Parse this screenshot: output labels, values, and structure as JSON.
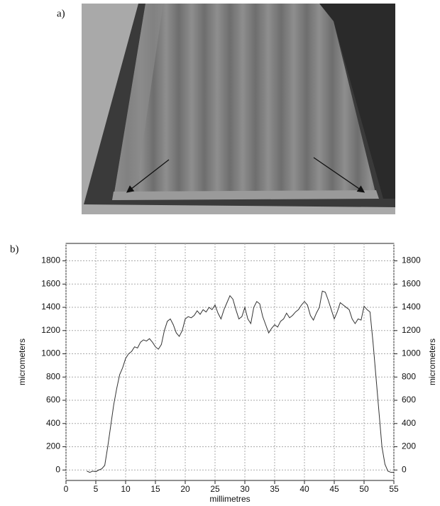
{
  "figure": {
    "panel_labels": [
      "a)",
      "b)"
    ]
  },
  "chart_data": {
    "type": "line",
    "x_label": "millimetres",
    "y_label": "micrometers",
    "y2_label": "micrometers",
    "x": [
      3.5,
      4,
      4.5,
      5,
      5.5,
      6,
      6.5,
      7,
      7.5,
      8,
      8.5,
      9,
      9.5,
      10,
      10.5,
      11,
      11.5,
      12,
      12.5,
      13,
      13.5,
      14,
      14.5,
      15,
      15.5,
      16,
      16.5,
      17,
      17.5,
      18,
      18.5,
      19,
      19.5,
      20,
      20.5,
      21,
      21.5,
      22,
      22.5,
      23,
      23.5,
      24,
      24.5,
      25,
      25.5,
      26,
      26.5,
      27,
      27.5,
      28,
      28.5,
      29,
      29.5,
      30,
      30.5,
      31,
      31.5,
      32,
      32.5,
      33,
      33.5,
      34,
      34.5,
      35,
      35.5,
      36,
      36.5,
      37,
      37.5,
      38,
      38.5,
      39,
      39.5,
      40,
      40.5,
      41,
      41.5,
      42,
      42.5,
      43,
      43.5,
      44,
      44.5,
      45,
      45.5,
      46,
      46.5,
      47,
      47.5,
      48,
      48.5,
      49,
      49.5,
      50,
      50.5,
      51,
      51.5,
      52,
      52.5,
      53,
      53.5,
      54,
      54.5,
      55
    ],
    "series": [
      {
        "color": "#333333",
        "values": [
          -10,
          -20,
          -10,
          -15,
          0,
          10,
          40,
          200,
          380,
          560,
          700,
          820,
          880,
          960,
          1000,
          1020,
          1060,
          1050,
          1100,
          1120,
          1110,
          1130,
          1100,
          1060,
          1040,
          1080,
          1200,
          1280,
          1300,
          1250,
          1180,
          1150,
          1200,
          1300,
          1320,
          1310,
          1330,
          1370,
          1340,
          1380,
          1360,
          1400,
          1380,
          1420,
          1350,
          1300,
          1380,
          1440,
          1500,
          1470,
          1380,
          1300,
          1320,
          1400,
          1300,
          1260,
          1400,
          1450,
          1430,
          1320,
          1250,
          1180,
          1220,
          1250,
          1230,
          1280,
          1300,
          1350,
          1310,
          1330,
          1360,
          1380,
          1420,
          1450,
          1420,
          1330,
          1290,
          1350,
          1400,
          1540,
          1530,
          1460,
          1380,
          1300,
          1360,
          1440,
          1420,
          1400,
          1380,
          1300,
          1260,
          1300,
          1290,
          1410,
          1380,
          1360,
          1100,
          800,
          500,
          200,
          50,
          -10,
          -20,
          -20
        ]
      }
    ],
    "xlim": [
      0,
      55
    ],
    "xticks": [
      0,
      5,
      10,
      15,
      20,
      25,
      30,
      35,
      40,
      45,
      50,
      55
    ],
    "ylim": [
      -90,
      1950
    ],
    "yticks": [
      0,
      200,
      400,
      600,
      800,
      1000,
      1200,
      1400,
      1600,
      1800
    ],
    "y2lim": [
      -90,
      1950
    ],
    "y2ticks": [
      0,
      200,
      400,
      600,
      800,
      1000,
      1200,
      1400,
      1600,
      1800
    ],
    "grid": true
  }
}
